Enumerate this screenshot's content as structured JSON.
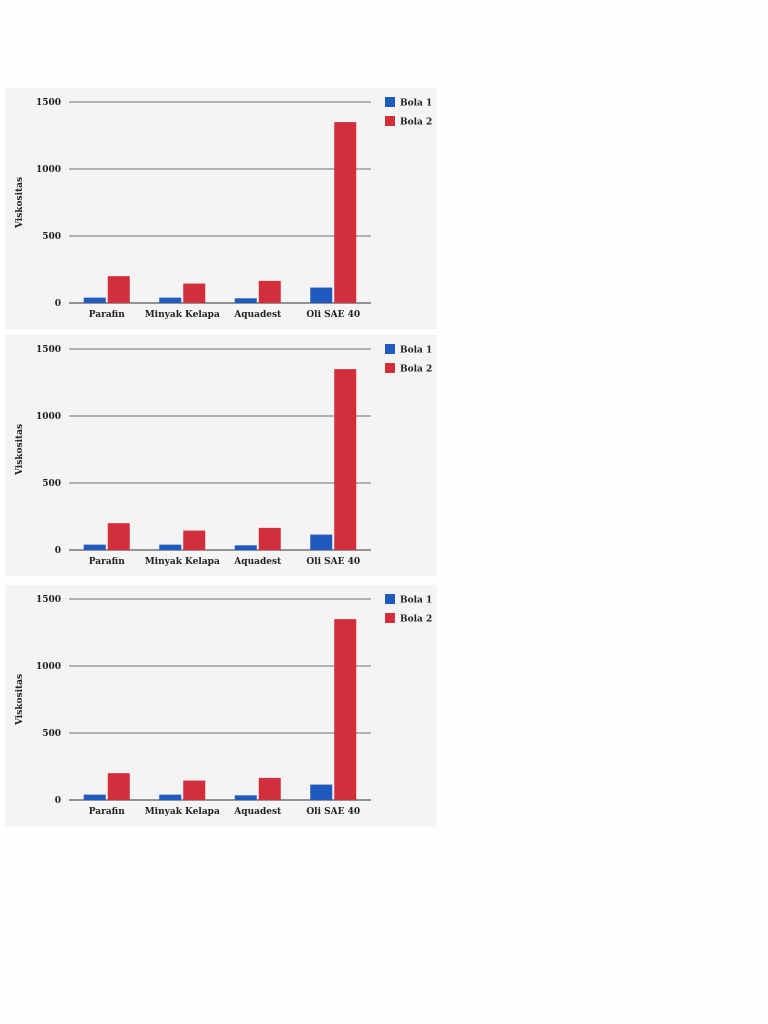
{
  "chart_data": [
    {
      "type": "bar",
      "title": "",
      "xlabel": "",
      "ylabel": "Viskositas",
      "categories": [
        "Parafin",
        "Minyak Kelapa",
        "Aquadest",
        "Oli SAE 40"
      ],
      "series": [
        {
          "name": "Bola 1",
          "values": [
            40,
            40,
            35,
            115
          ],
          "color": "#1f5bbf"
        },
        {
          "name": "Bola 2",
          "values": [
            200,
            145,
            165,
            1350
          ],
          "color": "#d32e3b"
        }
      ],
      "yticks": [
        0,
        500,
        1000,
        1500
      ],
      "ylim": [
        0,
        1500
      ],
      "grid": true,
      "legend": "top-right"
    },
    {
      "type": "bar",
      "title": "",
      "xlabel": "",
      "ylabel": "Viskositas",
      "categories": [
        "Parafin",
        "Minyak Kelapa",
        "Aquadest",
        "Oli SAE 40"
      ],
      "series": [
        {
          "name": "Bola 1",
          "values": [
            40,
            40,
            35,
            115
          ],
          "color": "#1f5bbf"
        },
        {
          "name": "Bola 2",
          "values": [
            200,
            145,
            165,
            1350
          ],
          "color": "#d32e3b"
        }
      ],
      "yticks": [
        0,
        500,
        1000,
        1500
      ],
      "ylim": [
        0,
        1500
      ],
      "grid": true,
      "legend": "top-right"
    },
    {
      "type": "bar",
      "title": "",
      "xlabel": "",
      "ylabel": "Viskositas",
      "categories": [
        "Parafin",
        "Minyak Kelapa",
        "Aquadest",
        "Oli SAE 40"
      ],
      "series": [
        {
          "name": "Bola 1",
          "values": [
            40,
            40,
            35,
            115
          ],
          "color": "#1f5bbf"
        },
        {
          "name": "Bola 2",
          "values": [
            200,
            145,
            165,
            1350
          ],
          "color": "#d32e3b"
        }
      ],
      "yticks": [
        0,
        500,
        1000,
        1500
      ],
      "ylim": [
        0,
        1500
      ],
      "grid": true,
      "legend": "top-right"
    }
  ]
}
